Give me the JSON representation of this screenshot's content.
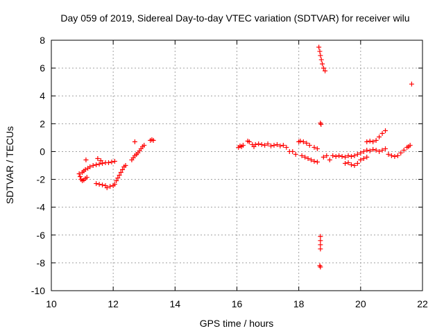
{
  "chart_data": {
    "type": "scatter",
    "title": "Day 059 of 2019, Sidereal Day-to-day VTEC variation (SDTVAR) for receiver wilu",
    "xlabel": "GPS time / hours",
    "ylabel": "SDTVAR / TECUs",
    "xlim": [
      10,
      22
    ],
    "ylim": [
      -10,
      8
    ],
    "xticks": [
      10,
      12,
      14,
      16,
      18,
      20,
      22
    ],
    "yticks": [
      -10,
      -8,
      -6,
      -4,
      -2,
      0,
      2,
      4,
      6,
      8
    ],
    "xtick_labels": [
      "10",
      "12",
      "14",
      "16",
      "18",
      "20",
      "22"
    ],
    "ytick_labels": [
      "-10",
      "-8",
      "-6",
      "-4",
      "-2",
      "0",
      "2",
      "4",
      "6",
      "8"
    ],
    "grid": true,
    "marker": "+",
    "color": "#ff0000",
    "series": [
      {
        "name": "SDTVAR",
        "points": [
          [
            10.9,
            -1.6
          ],
          [
            10.93,
            -1.8
          ],
          [
            10.96,
            -2.0
          ],
          [
            11.0,
            -2.1
          ],
          [
            11.05,
            -2.05
          ],
          [
            11.1,
            -1.95
          ],
          [
            11.15,
            -1.85
          ],
          [
            11.0,
            -1.5
          ],
          [
            11.05,
            -1.4
          ],
          [
            11.1,
            -1.3
          ],
          [
            11.18,
            -1.2
          ],
          [
            11.25,
            -1.1
          ],
          [
            11.35,
            -1.0
          ],
          [
            11.45,
            -0.95
          ],
          [
            11.55,
            -0.9
          ],
          [
            11.65,
            -0.85
          ],
          [
            11.75,
            -0.8
          ],
          [
            11.85,
            -0.8
          ],
          [
            11.95,
            -0.75
          ],
          [
            12.05,
            -0.7
          ],
          [
            11.12,
            -0.6
          ],
          [
            11.5,
            -0.5
          ],
          [
            11.6,
            -0.65
          ],
          [
            11.45,
            -2.3
          ],
          [
            11.55,
            -2.35
          ],
          [
            11.65,
            -2.4
          ],
          [
            11.75,
            -2.45
          ],
          [
            11.8,
            -2.6
          ],
          [
            11.9,
            -2.5
          ],
          [
            12.0,
            -2.45
          ],
          [
            12.05,
            -2.35
          ],
          [
            12.1,
            -2.1
          ],
          [
            12.15,
            -1.9
          ],
          [
            12.2,
            -1.7
          ],
          [
            12.25,
            -1.5
          ],
          [
            12.3,
            -1.3
          ],
          [
            12.35,
            -1.1
          ],
          [
            12.4,
            -1.0
          ],
          [
            12.6,
            -0.6
          ],
          [
            12.65,
            -0.45
          ],
          [
            12.7,
            -0.3
          ],
          [
            12.75,
            -0.2
          ],
          [
            12.8,
            -0.1
          ],
          [
            12.85,
            0.05
          ],
          [
            12.9,
            0.2
          ],
          [
            12.95,
            0.35
          ],
          [
            13.0,
            0.45
          ],
          [
            12.7,
            0.7
          ],
          [
            13.2,
            0.8
          ],
          [
            13.25,
            0.85
          ],
          [
            13.3,
            0.8
          ],
          [
            16.05,
            0.3
          ],
          [
            16.1,
            0.4
          ],
          [
            16.15,
            0.35
          ],
          [
            16.2,
            0.45
          ],
          [
            16.35,
            0.75
          ],
          [
            16.4,
            0.7
          ],
          [
            16.5,
            0.5
          ],
          [
            16.55,
            0.35
          ],
          [
            16.6,
            0.5
          ],
          [
            16.7,
            0.55
          ],
          [
            16.8,
            0.5
          ],
          [
            16.9,
            0.45
          ],
          [
            17.0,
            0.55
          ],
          [
            17.1,
            0.4
          ],
          [
            17.2,
            0.45
          ],
          [
            17.3,
            0.5
          ],
          [
            17.4,
            0.4
          ],
          [
            17.5,
            0.45
          ],
          [
            17.6,
            0.3
          ],
          [
            17.7,
            0.0
          ],
          [
            17.8,
            0.0
          ],
          [
            17.9,
            -0.2
          ],
          [
            18.0,
            0.7
          ],
          [
            18.05,
            0.75
          ],
          [
            18.15,
            0.7
          ],
          [
            18.25,
            0.6
          ],
          [
            18.35,
            0.45
          ],
          [
            18.5,
            0.3
          ],
          [
            18.6,
            0.2
          ],
          [
            18.1,
            -0.3
          ],
          [
            18.2,
            -0.4
          ],
          [
            18.3,
            -0.5
          ],
          [
            18.4,
            -0.6
          ],
          [
            18.5,
            -0.7
          ],
          [
            18.6,
            -0.75
          ],
          [
            18.65,
            7.5
          ],
          [
            18.68,
            7.2
          ],
          [
            18.7,
            6.9
          ],
          [
            18.73,
            6.6
          ],
          [
            18.76,
            6.3
          ],
          [
            18.8,
            6.0
          ],
          [
            18.85,
            5.8
          ],
          [
            18.7,
            2.05
          ],
          [
            18.72,
            1.95
          ],
          [
            18.7,
            -6.1
          ],
          [
            18.7,
            -6.4
          ],
          [
            18.7,
            -6.7
          ],
          [
            18.7,
            -7.0
          ],
          [
            18.68,
            -8.2
          ],
          [
            18.7,
            -8.3
          ],
          [
            18.8,
            -0.4
          ],
          [
            18.9,
            -0.3
          ],
          [
            19.0,
            -0.6
          ],
          [
            19.1,
            -0.3
          ],
          [
            19.2,
            -0.35
          ],
          [
            19.3,
            -0.3
          ],
          [
            19.4,
            -0.35
          ],
          [
            19.5,
            -0.4
          ],
          [
            19.6,
            -0.3
          ],
          [
            19.7,
            -0.35
          ],
          [
            19.8,
            -0.3
          ],
          [
            19.9,
            -0.2
          ],
          [
            20.0,
            -0.1
          ],
          [
            20.1,
            0.0
          ],
          [
            20.2,
            0.1
          ],
          [
            20.3,
            0.05
          ],
          [
            20.4,
            0.15
          ],
          [
            20.5,
            0.1
          ],
          [
            20.6,
            0.0
          ],
          [
            20.7,
            0.1
          ],
          [
            20.8,
            0.2
          ],
          [
            19.5,
            -0.85
          ],
          [
            19.6,
            -0.8
          ],
          [
            19.7,
            -0.95
          ],
          [
            19.8,
            -1.0
          ],
          [
            19.9,
            -0.85
          ],
          [
            20.0,
            -0.6
          ],
          [
            20.1,
            -0.5
          ],
          [
            20.2,
            -0.4
          ],
          [
            20.2,
            0.7
          ],
          [
            20.3,
            0.75
          ],
          [
            20.4,
            0.7
          ],
          [
            20.5,
            0.8
          ],
          [
            20.6,
            1.05
          ],
          [
            20.7,
            1.3
          ],
          [
            20.8,
            1.5
          ],
          [
            20.9,
            -0.2
          ],
          [
            21.0,
            -0.3
          ],
          [
            21.1,
            -0.35
          ],
          [
            21.2,
            -0.3
          ],
          [
            21.3,
            -0.1
          ],
          [
            21.4,
            0.1
          ],
          [
            21.5,
            0.3
          ],
          [
            21.6,
            0.45
          ],
          [
            21.55,
            0.35
          ],
          [
            21.65,
            4.85
          ]
        ]
      }
    ]
  }
}
